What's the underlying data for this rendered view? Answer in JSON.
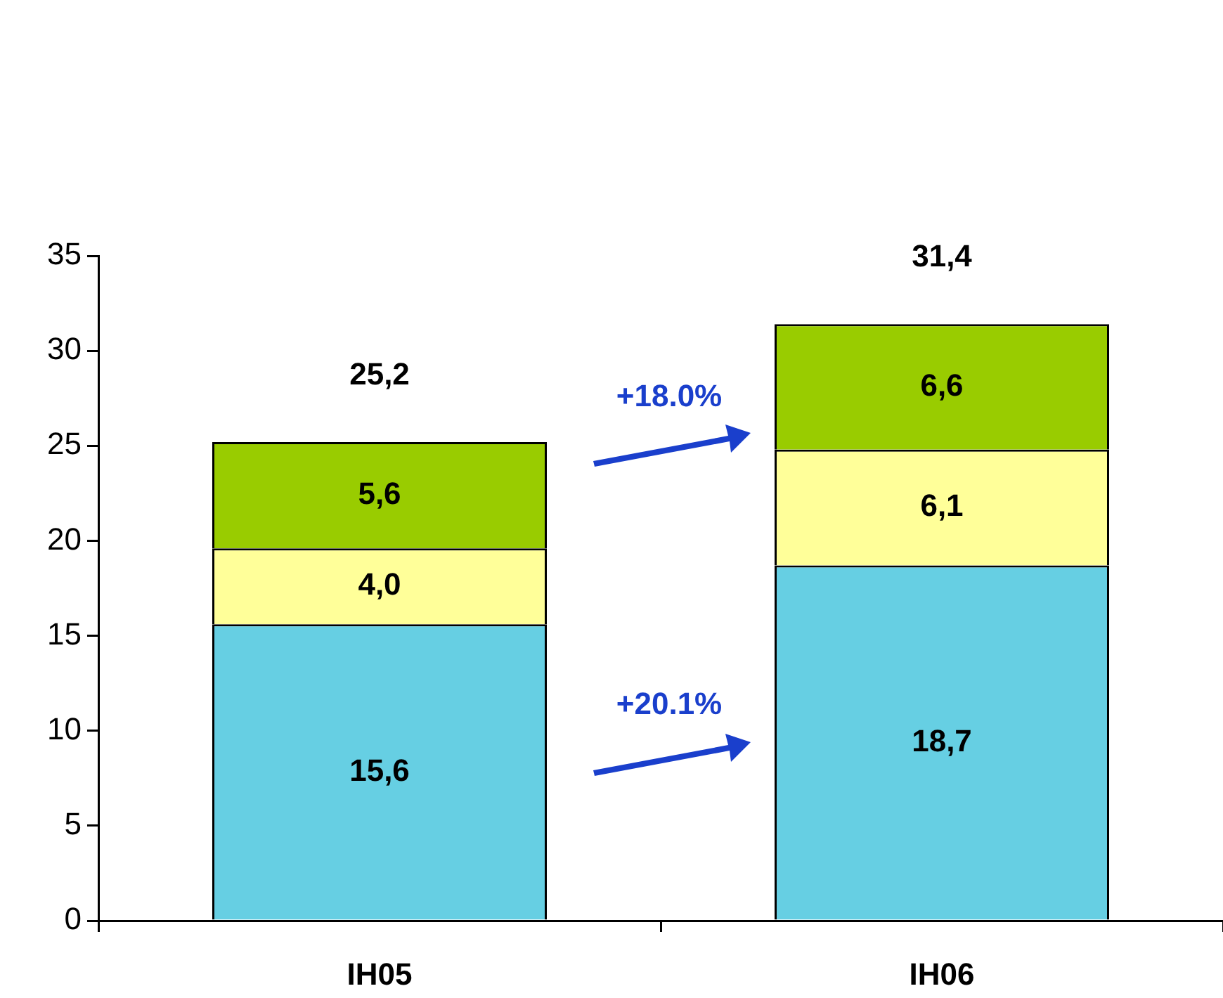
{
  "chart_data": {
    "type": "bar",
    "stacked": true,
    "categories": [
      "IH05",
      "IH06"
    ],
    "series": [
      {
        "color": "#66cfe3",
        "values": [
          15.6,
          18.7
        ],
        "value_labels": [
          "15,6",
          "18,7"
        ]
      },
      {
        "color": "#ffff99",
        "values": [
          4.0,
          6.1
        ],
        "value_labels": [
          "4,0",
          "6,1"
        ]
      },
      {
        "color": "#99cc00",
        "values": [
          5.6,
          6.6
        ],
        "value_labels": [
          "5,6",
          "6,6"
        ]
      }
    ],
    "totals": [
      "25,2",
      "31,4"
    ],
    "annotations": [
      "+18.0%",
      "+20.1%"
    ],
    "ylim": [
      0,
      35
    ],
    "yticks": [
      0,
      5,
      10,
      15,
      20,
      25,
      30,
      35
    ],
    "grid": false,
    "legend": false
  }
}
